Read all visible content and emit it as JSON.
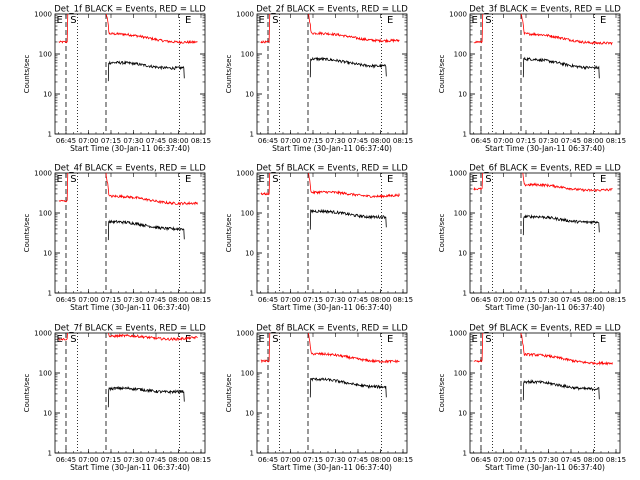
{
  "chart_data": {
    "type": "line",
    "layout": "3x3 grid",
    "xlabel": "Start Time (30-Jan-11 06:37:40)",
    "ylabel": "Counts/sec",
    "x_tick_labels": [
      "06:45",
      "07:00",
      "07:15",
      "07:30",
      "07:45",
      "08:00",
      "08:15"
    ],
    "x_tick_offsets_min": [
      7.33,
      22.33,
      37.33,
      52.33,
      67.33,
      82.33,
      97.33
    ],
    "xlim_min": [
      0,
      100
    ],
    "y_scale": "log",
    "y_tick_labels": [
      "1",
      "10",
      "100",
      "1000"
    ],
    "ylim": [
      1,
      1000
    ],
    "series_colors": {
      "events": "#000000",
      "lld": "#ff0000"
    },
    "series_names": {
      "events": "BLACK = Events",
      "lld": "RED = LLD"
    },
    "markers": [
      {
        "label": "E",
        "at_min": 1.0
      },
      {
        "label": "S",
        "at_min": 9.5
      },
      {
        "label": "E",
        "at_min": 86.0
      }
    ],
    "dashed_lines_min": [
      7.33,
      34.0
    ],
    "dotted_lines_min": [
      15.0,
      83.0
    ],
    "panels": [
      {
        "title": "Det_1f BLACK = Events, RED = LLD",
        "lld_pre": 200,
        "lld_start": 320,
        "lld_end": 190,
        "events_start": 60,
        "events_end": 45
      },
      {
        "title": "Det_2f BLACK = Events, RED = LLD",
        "lld_pre": 200,
        "lld_start": 330,
        "lld_end": 210,
        "events_start": 75,
        "events_end": 50
      },
      {
        "title": "Det_3f BLACK = Events, RED = LLD",
        "lld_pre": 200,
        "lld_start": 320,
        "lld_end": 180,
        "events_start": 75,
        "events_end": 45
      },
      {
        "title": "Det_4f BLACK = Events, RED = LLD",
        "lld_pre": 200,
        "lld_start": 260,
        "lld_end": 170,
        "events_start": 60,
        "events_end": 40
      },
      {
        "title": "Det_5f BLACK = Events, RED = LLD",
        "lld_pre": 300,
        "lld_start": 320,
        "lld_end": 270,
        "events_start": 110,
        "events_end": 80
      },
      {
        "title": "Det_6f BLACK = Events, RED = LLD",
        "lld_pre": 400,
        "lld_start": 500,
        "lld_end": 370,
        "events_start": 80,
        "events_end": 60
      },
      {
        "title": "Det_7f BLACK = Events, RED = LLD",
        "lld_pre": 700,
        "lld_start": 800,
        "lld_end": 750,
        "events_start": 40,
        "events_end": 35
      },
      {
        "title": "Det_8f BLACK = Events, RED = LLD",
        "lld_pre": 200,
        "lld_start": 300,
        "lld_end": 190,
        "events_start": 70,
        "events_end": 45
      },
      {
        "title": "Det_9f BLACK = Events, RED = LLD",
        "lld_pre": 200,
        "lld_start": 290,
        "lld_end": 170,
        "events_start": 60,
        "events_end": 40
      }
    ]
  }
}
